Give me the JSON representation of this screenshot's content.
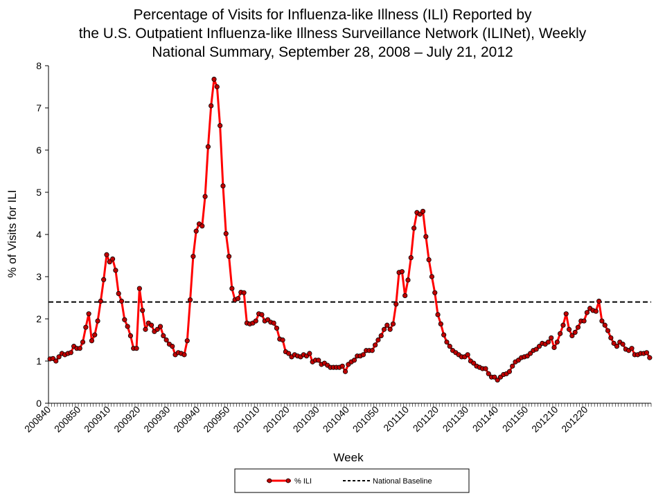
{
  "chart_data": {
    "type": "line",
    "title_lines": [
      "Percentage of Visits for Influenza-like Illness (ILI) Reported by",
      "the U.S. Outpatient Influenza-like Illness Surveillance Network (ILINet), Weekly",
      "National Summary, September 28, 2008 – July 21, 2012"
    ],
    "xlabel": "Week",
    "ylabel": "% of Visits for ILI",
    "ylim": [
      0,
      8
    ],
    "y_ticks": [
      "0",
      "1",
      "2",
      "3",
      "4",
      "5",
      "6",
      "7",
      "8"
    ],
    "x_tick_labels": [
      "200840",
      "200850",
      "200910",
      "200920",
      "200930",
      "200940",
      "200950",
      "201010",
      "201020",
      "201030",
      "201040",
      "201050",
      "201110",
      "201120",
      "201130",
      "201140",
      "201150",
      "201210",
      "201220"
    ],
    "grid": false,
    "legend_placement": "bottom-center",
    "series": [
      {
        "name": "% ILI",
        "color": "#ff0000",
        "marker_color": "#c00000",
        "values": [
          1.05,
          1.06,
          1.0,
          1.1,
          1.18,
          1.15,
          1.18,
          1.2,
          1.35,
          1.3,
          1.3,
          1.45,
          1.8,
          2.12,
          1.48,
          1.62,
          1.95,
          2.42,
          2.93,
          3.52,
          3.35,
          3.42,
          3.15,
          2.6,
          2.42,
          1.98,
          1.82,
          1.6,
          1.3,
          1.3,
          2.72,
          2.2,
          1.75,
          1.9,
          1.85,
          1.7,
          1.75,
          1.82,
          1.6,
          1.5,
          1.4,
          1.35,
          1.15,
          1.2,
          1.18,
          1.15,
          1.48,
          2.45,
          3.48,
          4.08,
          4.25,
          4.2,
          4.9,
          6.08,
          7.05,
          7.68,
          7.5,
          6.58,
          5.15,
          4.02,
          3.48,
          2.72,
          2.45,
          2.48,
          2.63,
          2.62,
          1.9,
          1.88,
          1.9,
          1.95,
          2.12,
          2.1,
          1.95,
          1.98,
          1.92,
          1.9,
          1.78,
          1.52,
          1.5,
          1.22,
          1.18,
          1.1,
          1.15,
          1.12,
          1.1,
          1.15,
          1.12,
          1.18,
          0.98,
          1.02,
          1.02,
          0.92,
          0.95,
          0.9,
          0.85,
          0.85,
          0.85,
          0.85,
          0.88,
          0.75,
          0.92,
          0.98,
          1.02,
          1.12,
          1.12,
          1.15,
          1.25,
          1.25,
          1.25,
          1.38,
          1.5,
          1.6,
          1.75,
          1.85,
          1.75,
          1.88,
          2.35,
          3.1,
          3.12,
          2.55,
          2.92,
          3.45,
          4.15,
          4.52,
          4.48,
          4.55,
          3.95,
          3.4,
          3.0,
          2.62,
          2.1,
          1.88,
          1.62,
          1.45,
          1.35,
          1.25,
          1.2,
          1.15,
          1.1,
          1.1,
          1.15,
          1.0,
          0.95,
          0.88,
          0.85,
          0.82,
          0.82,
          0.7,
          0.62,
          0.62,
          0.55,
          0.62,
          0.68,
          0.7,
          0.75,
          0.88,
          0.98,
          1.02,
          1.08,
          1.1,
          1.12,
          1.18,
          1.25,
          1.28,
          1.35,
          1.42,
          1.4,
          1.45,
          1.55,
          1.32,
          1.45,
          1.65,
          1.85,
          2.12,
          1.75,
          1.6,
          1.68,
          1.8,
          1.95,
          1.95,
          2.15,
          2.25,
          2.2,
          2.18,
          2.42,
          1.95,
          1.85,
          1.72,
          1.55,
          1.42,
          1.35,
          1.45,
          1.4,
          1.28,
          1.25,
          1.3,
          1.15,
          1.15,
          1.18,
          1.18,
          1.2,
          1.08
        ]
      },
      {
        "name": "National Baseline",
        "color": "#000000",
        "style": "dashed",
        "value": 2.4
      }
    ]
  }
}
